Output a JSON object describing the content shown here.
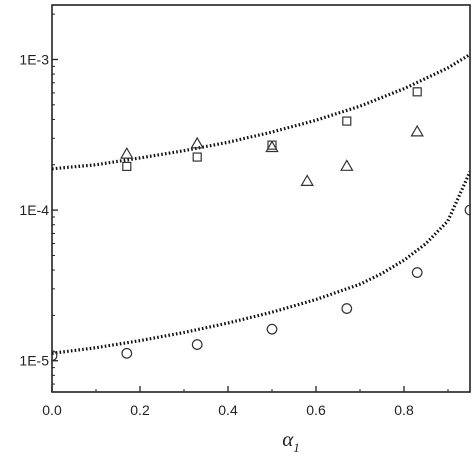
{
  "chart_data": {
    "type": "scatter",
    "xlabel": "α",
    "xlabel_subscript": "1",
    "ylabel": "",
    "xlim": [
      0.0,
      0.95
    ],
    "ylim": [
      6.2e-06,
      0.0023
    ],
    "yscale": "log",
    "grid": false,
    "x_ticks": [
      {
        "value": 0.0,
        "label": "0.0"
      },
      {
        "value": 0.2,
        "label": "0.2"
      },
      {
        "value": 0.4,
        "label": "0.4"
      },
      {
        "value": 0.6,
        "label": "0.6"
      },
      {
        "value": 0.8,
        "label": "0.8"
      }
    ],
    "y_ticks": [
      {
        "value": 1e-05,
        "label": "1E-5"
      },
      {
        "value": 0.0001,
        "label": "1E-4"
      },
      {
        "value": 0.001,
        "label": "1E-3"
      }
    ],
    "series": [
      {
        "marker": "square",
        "x": [
          0.17,
          0.33,
          0.5,
          0.67,
          0.83
        ],
        "y": [
          0.000195,
          0.000225,
          0.00027,
          0.00039,
          0.00061
        ]
      },
      {
        "marker": "triangle",
        "x": [
          0.17,
          0.33,
          0.5,
          0.58,
          0.67,
          0.83
        ],
        "y": [
          0.000235,
          0.000275,
          0.00026,
          0.000155,
          0.000195,
          0.00033
        ]
      },
      {
        "marker": "circle",
        "x": [
          0.0,
          0.17,
          0.33,
          0.5,
          0.67,
          0.83,
          0.95
        ],
        "y": [
          1.08e-05,
          1.12e-05,
          1.28e-05,
          1.62e-05,
          2.22e-05,
          3.85e-05,
          0.0001
        ]
      },
      {
        "marker": "dotted-line",
        "x": [
          0.0,
          0.1,
          0.2,
          0.3,
          0.4,
          0.5,
          0.6,
          0.7,
          0.8,
          0.9,
          0.95
        ],
        "y": [
          0.000188,
          0.0002,
          0.000222,
          0.000248,
          0.000282,
          0.00033,
          0.000395,
          0.00049,
          0.00064,
          0.00088,
          0.00108
        ]
      },
      {
        "marker": "dotted-line",
        "x": [
          0.0,
          0.1,
          0.2,
          0.3,
          0.4,
          0.5,
          0.6,
          0.7,
          0.75,
          0.8,
          0.85,
          0.9,
          0.95
        ],
        "y": [
          1.12e-05,
          1.22e-05,
          1.36e-05,
          1.54e-05,
          1.78e-05,
          2.1e-05,
          2.55e-05,
          3.22e-05,
          3.8e-05,
          4.65e-05,
          6e-05,
          8.5e-05,
          0.00018
        ]
      }
    ]
  }
}
